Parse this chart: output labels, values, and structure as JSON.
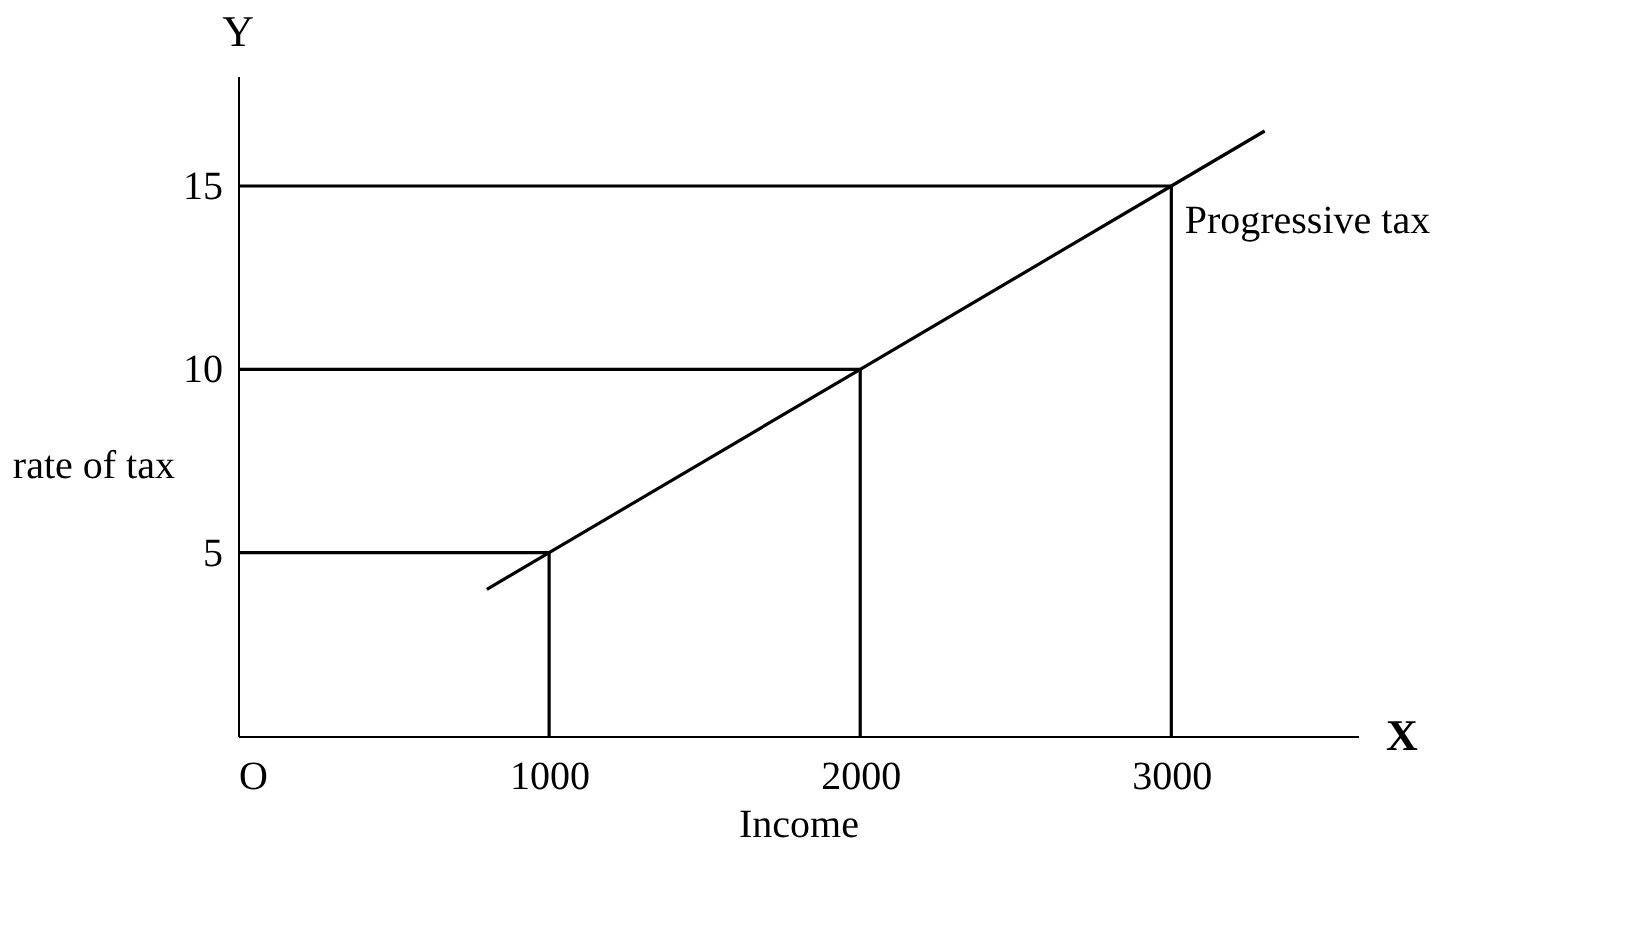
{
  "chart_data": {
    "type": "line",
    "xlabel": "Income",
    "ylabel": "rate of tax",
    "xlim": [
      0,
      3600
    ],
    "ylim": [
      0,
      18
    ],
    "xticks": [
      {
        "value": 0,
        "label": "O"
      },
      1000,
      2000,
      3000
    ],
    "yticks": [
      5,
      10,
      15
    ],
    "grid": false,
    "marker": "none",
    "line_style": "solid",
    "series": [
      {
        "color": "#000000",
        "x": [
          800,
          1000,
          2000,
          3000,
          3300
        ],
        "values": [
          4,
          5,
          10,
          15,
          16.5
        ]
      },
      {
        "color": "#000000",
        "x": [
          0,
          1000,
          1000
        ],
        "values": [
          5,
          5,
          0
        ]
      },
      {
        "color": "#000000",
        "x": [
          0,
          2000,
          2000
        ],
        "values": [
          10,
          10,
          0
        ]
      },
      {
        "color": "#000000",
        "x": [
          0,
          3000,
          3000
        ],
        "values": [
          15,
          15,
          0
        ]
      }
    ],
    "annotations": [
      {
        "text": "Progressive tax",
        "x": 3300,
        "y": 16.5
      },
      "Y",
      "X"
    ]
  }
}
